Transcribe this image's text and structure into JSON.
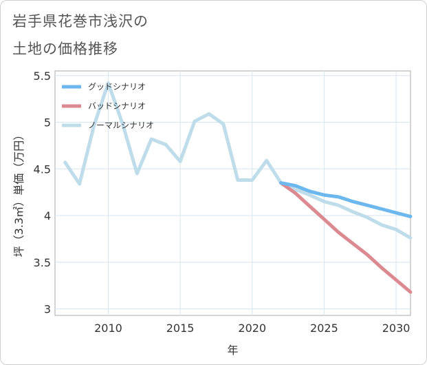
{
  "title_lines": [
    "岩手県花巻市浅沢の",
    "土地の価格推移"
  ],
  "chart_data": {
    "type": "line",
    "xlabel": "年",
    "ylabel": "坪（3.3㎡）単価（万円）",
    "xlim": [
      2006.3,
      2031
    ],
    "ylim": [
      2.93,
      5.55
    ],
    "x_ticks": [
      2010,
      2015,
      2020,
      2025,
      2030
    ],
    "y_ticks": [
      3,
      3.5,
      4,
      4.5,
      5,
      5.5
    ],
    "y_tick_labels": [
      "3",
      "3.5",
      "4",
      "4.5",
      "5",
      "5.5"
    ],
    "grid": true,
    "legend_position": "top-left",
    "series": [
      {
        "name": "グッドシナリオ",
        "color": "#6cb7ee",
        "x": [
          2022,
          2023,
          2024,
          2025,
          2026,
          2027,
          2028,
          2029,
          2030,
          2031
        ],
        "y": [
          4.35,
          4.32,
          4.26,
          4.22,
          4.2,
          4.15,
          4.11,
          4.07,
          4.03,
          3.99
        ]
      },
      {
        "name": "バッドシナリオ",
        "color": "#dc8a91",
        "x": [
          2022,
          2023,
          2024,
          2025,
          2026,
          2027,
          2028,
          2029,
          2030,
          2031
        ],
        "y": [
          4.35,
          4.24,
          4.1,
          3.96,
          3.82,
          3.7,
          3.58,
          3.44,
          3.31,
          3.18
        ]
      },
      {
        "name": "ノーマルシナリオ",
        "color": "#bfdcea",
        "x": [
          2007,
          2008,
          2009,
          2010,
          2011,
          2012,
          2013,
          2014,
          2015,
          2016,
          2017,
          2018,
          2019,
          2020,
          2021,
          2022,
          2023,
          2024,
          2025,
          2026,
          2027,
          2028,
          2029,
          2030,
          2031
        ],
        "y": [
          4.57,
          4.34,
          4.96,
          5.42,
          4.98,
          4.45,
          4.82,
          4.76,
          4.58,
          5.01,
          5.09,
          4.98,
          4.38,
          4.38,
          4.59,
          4.35,
          4.28,
          4.22,
          4.15,
          4.11,
          4.04,
          3.98,
          3.9,
          3.85,
          3.76
        ]
      }
    ]
  }
}
